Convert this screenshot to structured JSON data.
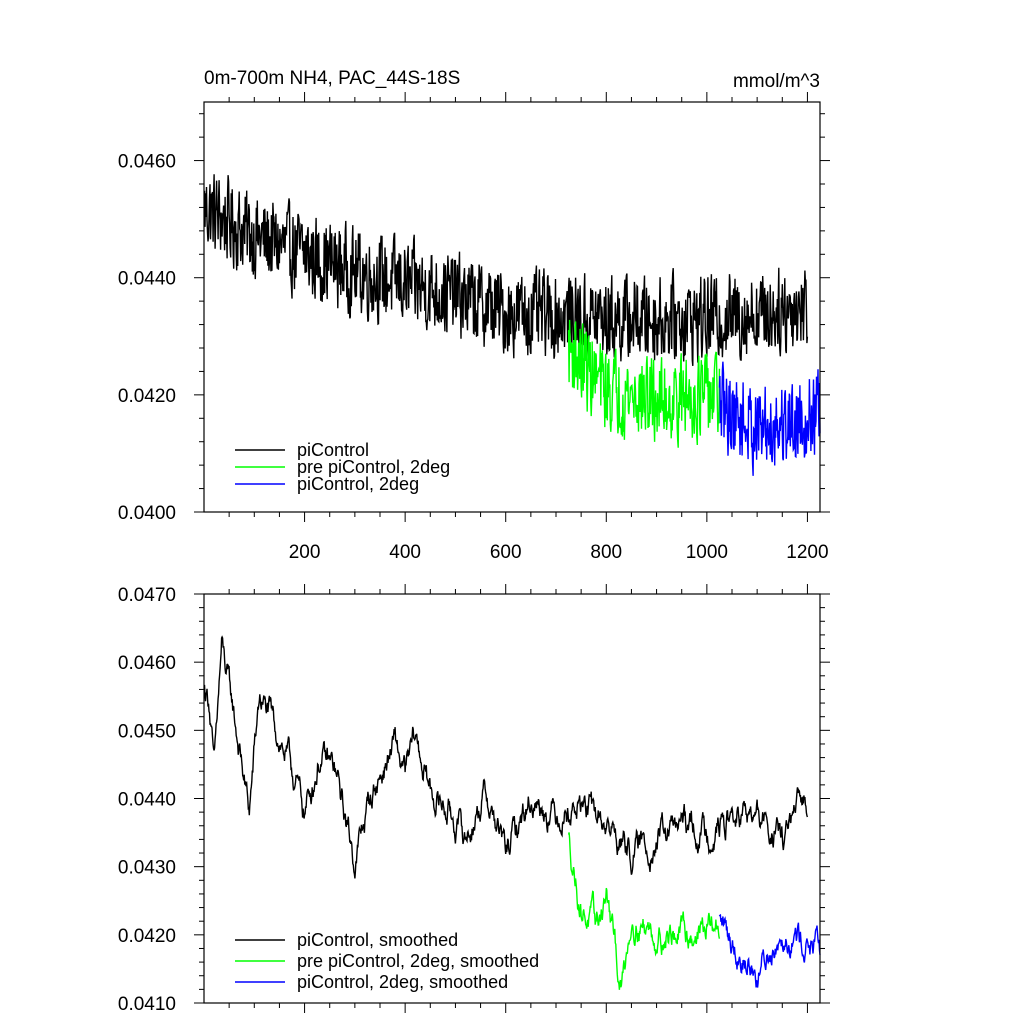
{
  "chart_data": [
    {
      "type": "line",
      "title": "0m-700m NH4, PAC_44S-18S",
      "units": "mmol/m^3",
      "xlim": [
        0,
        1225
      ],
      "ylim": [
        0.04,
        0.047
      ],
      "xticks": [
        200,
        400,
        600,
        800,
        1000,
        1200
      ],
      "xtick_labels": [
        "200",
        "400",
        "600",
        "800",
        "1000",
        "1200"
      ],
      "yticks": [
        0.04,
        0.042,
        0.044,
        0.046
      ],
      "ytick_labels": [
        "0.0400",
        "0.0420",
        "0.0440",
        "0.0460"
      ],
      "legend_position": "bottom-left",
      "series": [
        {
          "name": "piControl",
          "color": "#000000",
          "x_start": 1,
          "x_end": 1200,
          "noise": 0.0009,
          "trend": [
            [
              0,
              0.0452
            ],
            [
              100,
              0.0447
            ],
            [
              300,
              0.0441
            ],
            [
              500,
              0.0437
            ],
            [
              600,
              0.0434
            ],
            [
              800,
              0.0433
            ],
            [
              1000,
              0.0433
            ],
            [
              1200,
              0.0435
            ]
          ]
        },
        {
          "name": "pre piControl, 2deg",
          "color": "#00ff00",
          "x_start": 725,
          "x_end": 1025,
          "noise": 0.0009,
          "trend": [
            [
              725,
              0.0428
            ],
            [
              800,
              0.0421
            ],
            [
              900,
              0.0419
            ],
            [
              1025,
              0.042
            ]
          ]
        },
        {
          "name": "piControl, 2deg",
          "color": "#0000ff",
          "x_start": 1025,
          "x_end": 1225,
          "noise": 0.0009,
          "trend": [
            [
              1025,
              0.0418
            ],
            [
              1100,
              0.0414
            ],
            [
              1225,
              0.0417
            ]
          ]
        }
      ]
    },
    {
      "type": "line",
      "xlim": [
        0,
        1225
      ],
      "ylim": [
        0.041,
        0.047
      ],
      "xticks": [
        200,
        400,
        600,
        800,
        1000,
        1200
      ],
      "xtick_labels": [],
      "yticks": [
        0.041,
        0.042,
        0.043,
        0.044,
        0.045,
        0.046,
        0.047
      ],
      "ytick_labels": [
        "0.0410",
        "0.0420",
        "0.0430",
        "0.0440",
        "0.0450",
        "0.0460",
        "0.0470"
      ],
      "legend_position": "bottom-left",
      "series": [
        {
          "name": "piControl, smoothed",
          "color": "#000000",
          "x_start": 1,
          "x_end": 1200,
          "noise": 0.0004,
          "anchors": [
            [
              1,
              0.0456
            ],
            [
              10,
              0.0455
            ],
            [
              20,
              0.0444
            ],
            [
              35,
              0.0462
            ],
            [
              60,
              0.0452
            ],
            [
              90,
              0.0438
            ],
            [
              110,
              0.0455
            ],
            [
              150,
              0.0449
            ],
            [
              180,
              0.0443
            ],
            [
              200,
              0.0438
            ],
            [
              230,
              0.0446
            ],
            [
              260,
              0.0444
            ],
            [
              300,
              0.0431
            ],
            [
              330,
              0.044
            ],
            [
              380,
              0.0448
            ],
            [
              400,
              0.0443
            ],
            [
              420,
              0.0449
            ],
            [
              450,
              0.0441
            ],
            [
              490,
              0.0438
            ],
            [
              520,
              0.0434
            ],
            [
              560,
              0.0441
            ],
            [
              600,
              0.0432
            ],
            [
              650,
              0.044
            ],
            [
              700,
              0.0438
            ],
            [
              750,
              0.0439
            ],
            [
              800,
              0.0436
            ],
            [
              850,
              0.0432
            ],
            [
              900,
              0.0434
            ],
            [
              950,
              0.0436
            ],
            [
              1000,
              0.0435
            ],
            [
              1050,
              0.0437
            ],
            [
              1100,
              0.0437
            ],
            [
              1150,
              0.0434
            ],
            [
              1200,
              0.044
            ]
          ]
        },
        {
          "name": "pre piControl, 2deg, smoothed",
          "color": "#00ff00",
          "x_start": 725,
          "x_end": 1025,
          "noise": 0.0004,
          "anchors": [
            [
              725,
              0.0434
            ],
            [
              750,
              0.0424
            ],
            [
              780,
              0.0421
            ],
            [
              800,
              0.0426
            ],
            [
              830,
              0.0412
            ],
            [
              850,
              0.0423
            ],
            [
              900,
              0.042
            ],
            [
              950,
              0.042
            ],
            [
              1000,
              0.0421
            ],
            [
              1025,
              0.0421
            ]
          ]
        },
        {
          "name": "piControl, 2deg, smoothed",
          "color": "#0000ff",
          "x_start": 1025,
          "x_end": 1225,
          "noise": 0.0004,
          "anchors": [
            [
              1025,
              0.0422
            ],
            [
              1060,
              0.0418
            ],
            [
              1100,
              0.0414
            ],
            [
              1150,
              0.0421
            ],
            [
              1200,
              0.0419
            ],
            [
              1225,
              0.0417
            ]
          ]
        }
      ]
    }
  ]
}
